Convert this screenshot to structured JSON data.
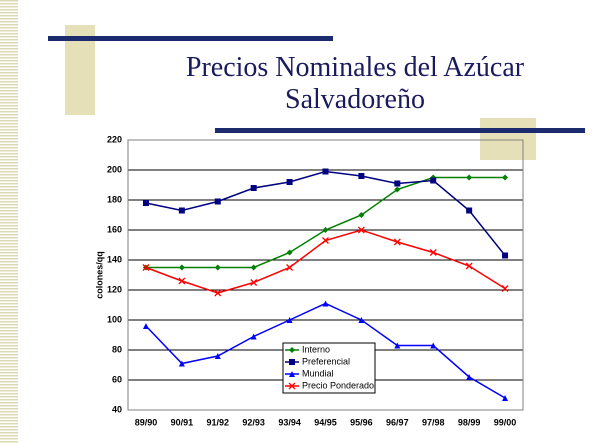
{
  "chart_data": {
    "type": "line",
    "title": [
      "Precios Nominales del Azúcar",
      "Salvadoreño"
    ],
    "y_label": "colones/qq",
    "categories": [
      "89/90",
      "90/91",
      "91/92",
      "92/93",
      "93/94",
      "94/95",
      "95/96",
      "96/97",
      "97/98",
      "98/99",
      "99/00"
    ],
    "series": [
      {
        "name": "Interno",
        "color": "#008000",
        "marker": "diamond",
        "values": [
          135,
          135,
          135,
          135,
          145,
          160,
          170,
          187,
          195,
          195,
          195
        ]
      },
      {
        "name": "Preferencial",
        "color": "#000080",
        "marker": "square",
        "values": [
          178,
          173,
          179,
          188,
          192,
          199,
          196,
          191,
          193,
          173,
          143
        ]
      },
      {
        "name": "Mundial",
        "color": "#0000ff",
        "marker": "triangle",
        "values": [
          96,
          71,
          76,
          89,
          100,
          111,
          100,
          83,
          83,
          62,
          48
        ]
      },
      {
        "name": "Precio Ponderado",
        "color": "#ff0000",
        "marker": "x",
        "values": [
          135,
          126,
          118,
          125,
          135,
          153,
          160,
          152,
          145,
          136,
          121
        ]
      }
    ],
    "ylim": [
      40,
      220
    ],
    "yticks": [
      40,
      60,
      80,
      100,
      120,
      140,
      160,
      180,
      200,
      220
    ],
    "grid": true
  }
}
